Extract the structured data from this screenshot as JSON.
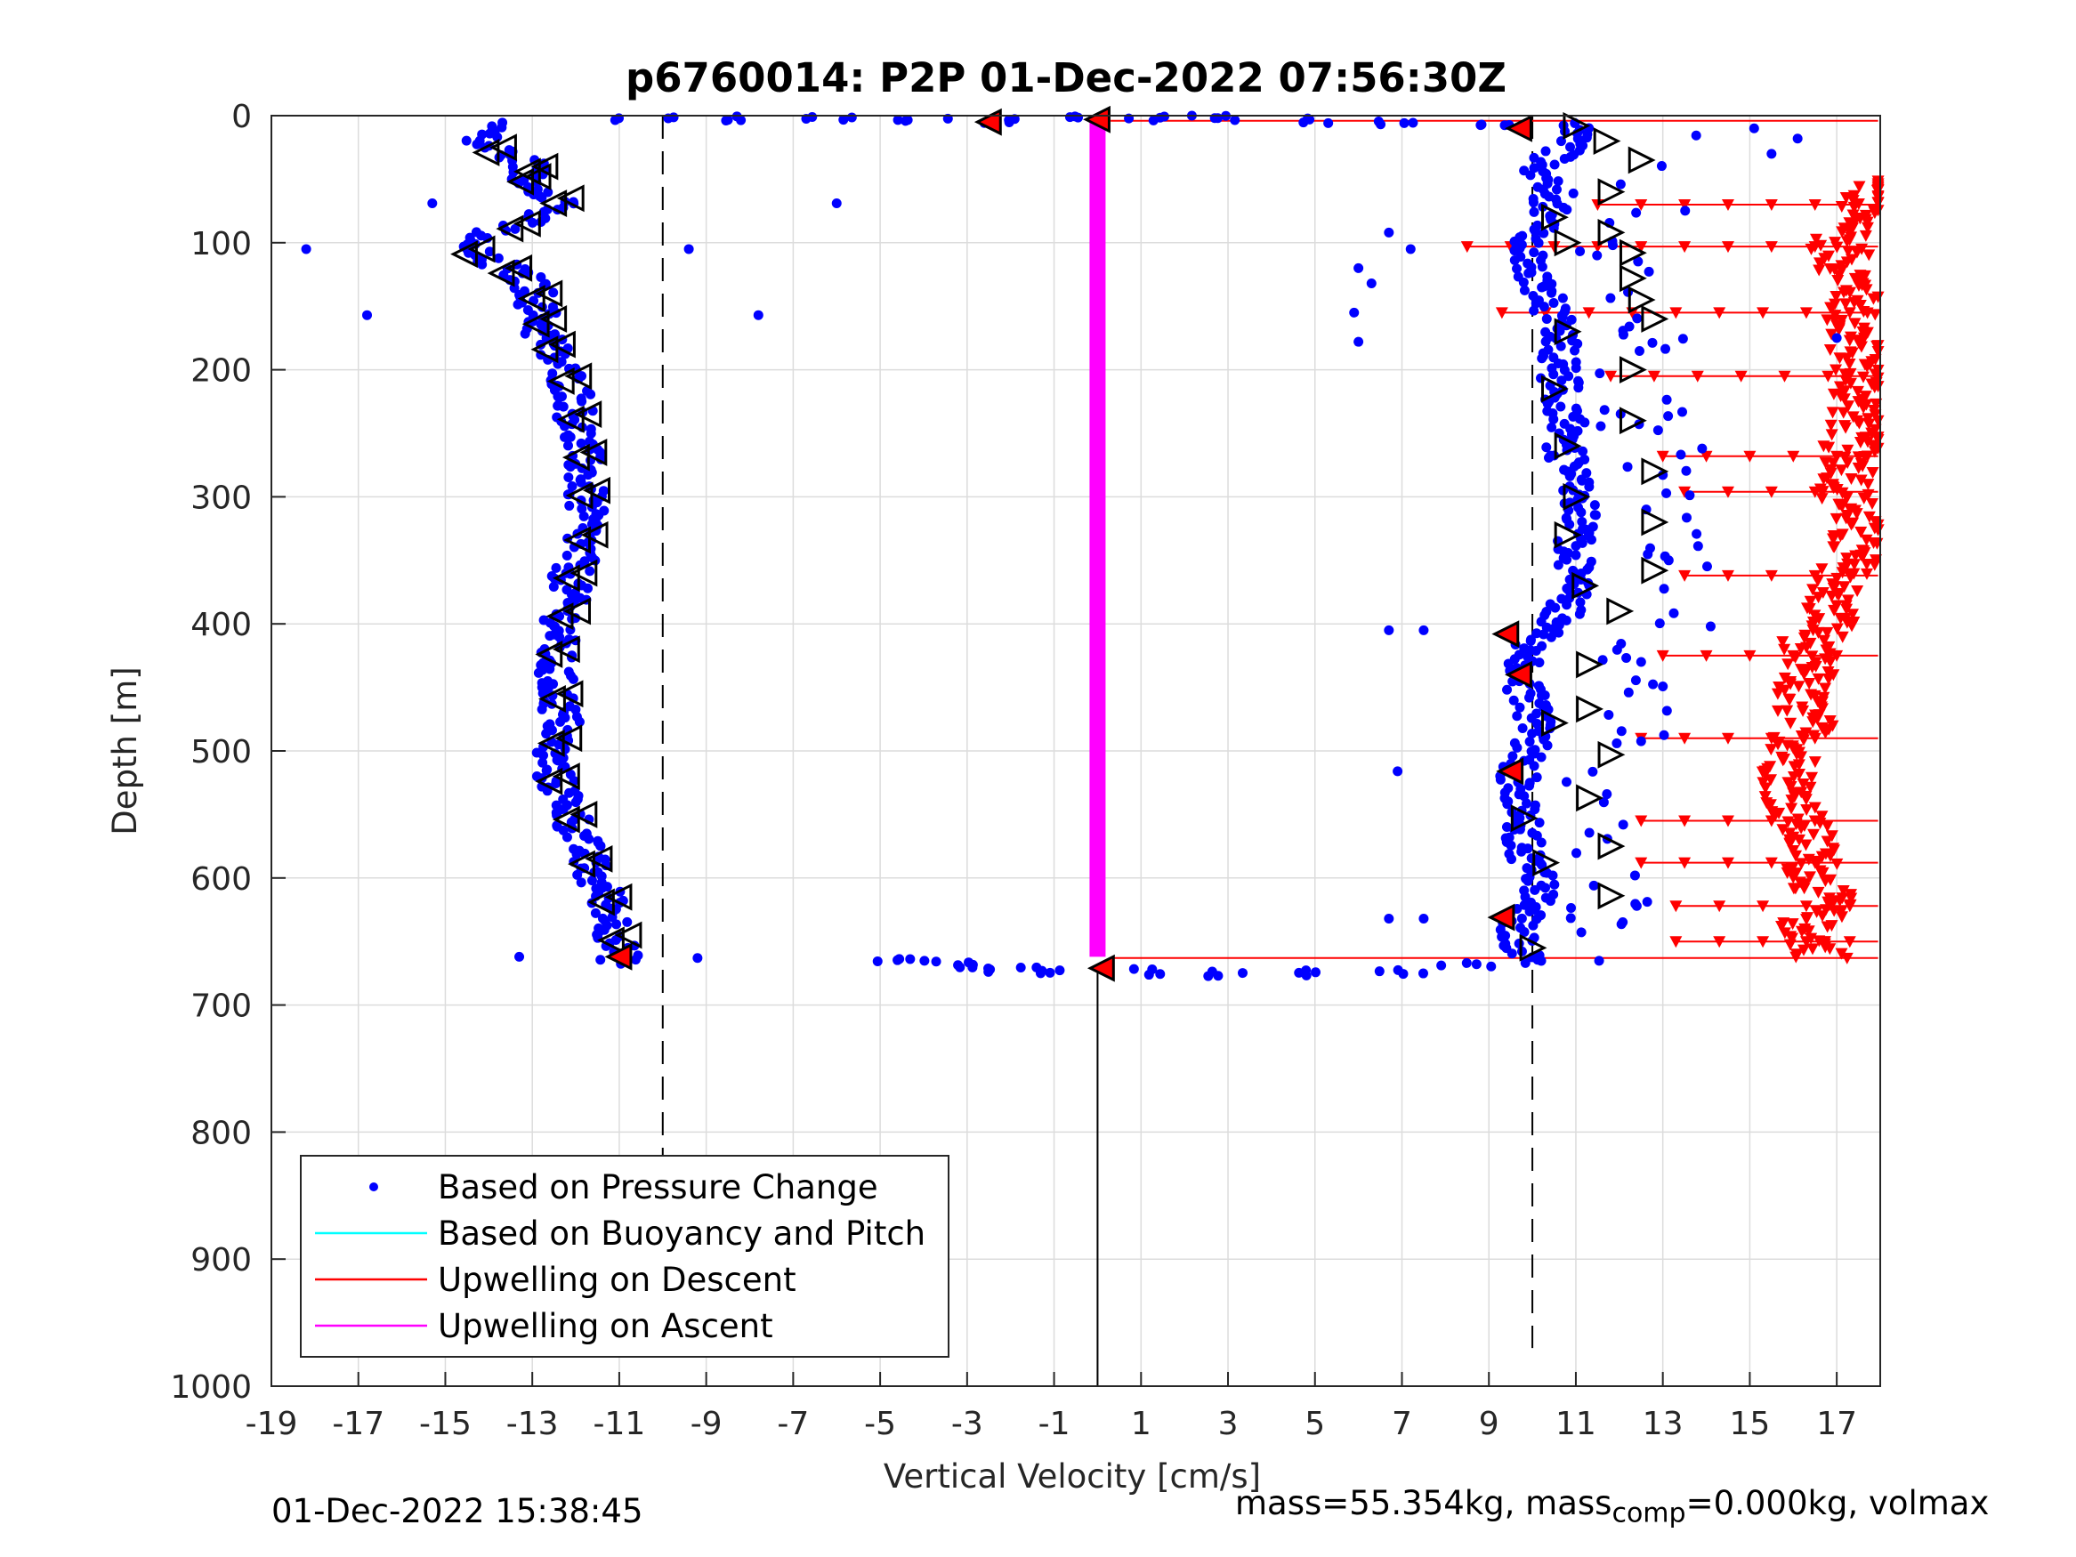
{
  "chart_data": {
    "type": "scatter",
    "title": "p6760014: P2P 01-Dec-2022 07:56:30Z",
    "xlabel": "Vertical Velocity [cm/s]",
    "ylabel": "Depth [m]",
    "xlim": [
      -19,
      18
    ],
    "ylim": [
      0,
      1000
    ],
    "y_reversed": true,
    "grid": true,
    "xticks": [
      "-19",
      "-17",
      "-15",
      "-13",
      "-11",
      "-9",
      "-7",
      "-5",
      "-3",
      "-1",
      "1",
      "3",
      "5",
      "7",
      "9",
      "11",
      "13",
      "15",
      "17"
    ],
    "yticks": [
      "0",
      "100",
      "200",
      "300",
      "400",
      "500",
      "600",
      "700",
      "800",
      "900",
      "1000"
    ],
    "reference_lines": {
      "dashed_x": [
        -10,
        10
      ],
      "solid_x": [
        0
      ]
    },
    "legend": {
      "position": "bottom-left",
      "entries": [
        {
          "label": "Based on Pressure Change",
          "color": "#0000ff",
          "style": "dot"
        },
        {
          "label": "Based on Buoyancy and Pitch",
          "color": "#00ffff",
          "style": "line"
        },
        {
          "label": "Upwelling on Descent",
          "color": "#ff0000",
          "style": "line"
        },
        {
          "label": "Upwelling on Ascent",
          "color": "#ff00ff",
          "style": "line"
        }
      ]
    },
    "series": [
      {
        "name": "Based on Pressure Change",
        "color": "#0000ff",
        "descent_profile": [
          [
            1,
            -13.4
          ],
          [
            10,
            -13.9
          ],
          [
            20,
            -14.3
          ],
          [
            30,
            -13.6
          ],
          [
            40,
            -13.0
          ],
          [
            50,
            -13.2
          ],
          [
            60,
            -12.6
          ],
          [
            70,
            -12.2
          ],
          [
            80,
            -13.0
          ],
          [
            90,
            -13.8
          ],
          [
            100,
            -14.6
          ],
          [
            110,
            -14.3
          ],
          [
            120,
            -13.6
          ],
          [
            130,
            -13.1
          ],
          [
            140,
            -12.9
          ],
          [
            150,
            -12.9
          ],
          [
            160,
            -12.8
          ],
          [
            170,
            -12.8
          ],
          [
            180,
            -12.6
          ],
          [
            190,
            -12.5
          ],
          [
            200,
            -12.3
          ],
          [
            220,
            -12.0
          ],
          [
            240,
            -12.0
          ],
          [
            260,
            -11.9
          ],
          [
            280,
            -11.8
          ],
          [
            300,
            -11.8
          ],
          [
            320,
            -11.8
          ],
          [
            340,
            -11.9
          ],
          [
            360,
            -12.1
          ],
          [
            380,
            -12.2
          ],
          [
            400,
            -12.3
          ],
          [
            420,
            -12.5
          ],
          [
            440,
            -12.5
          ],
          [
            460,
            -12.4
          ],
          [
            480,
            -12.3
          ],
          [
            500,
            -12.6
          ],
          [
            520,
            -12.5
          ],
          [
            540,
            -12.2
          ],
          [
            560,
            -12.0
          ],
          [
            580,
            -11.8
          ],
          [
            600,
            -11.6
          ],
          [
            620,
            -11.2
          ],
          [
            640,
            -11.1
          ],
          [
            660,
            -11.0
          ]
        ],
        "ascent_profile": [
          [
            660,
            9.8
          ],
          [
            640,
            9.5
          ],
          [
            620,
            10.2
          ],
          [
            600,
            10.1
          ],
          [
            580,
            9.9
          ],
          [
            560,
            9.7
          ],
          [
            540,
            9.8
          ],
          [
            520,
            9.7
          ],
          [
            500,
            9.9
          ],
          [
            480,
            10.0
          ],
          [
            460,
            9.9
          ],
          [
            440,
            9.8
          ],
          [
            420,
            9.7
          ],
          [
            400,
            10.5
          ],
          [
            380,
            10.9
          ],
          [
            360,
            11.0
          ],
          [
            340,
            10.9
          ],
          [
            320,
            11.0
          ],
          [
            300,
            11.1
          ],
          [
            280,
            10.8
          ],
          [
            260,
            10.7
          ],
          [
            240,
            10.8
          ],
          [
            220,
            10.7
          ],
          [
            200,
            10.6
          ],
          [
            180,
            10.6
          ],
          [
            160,
            10.5
          ],
          [
            140,
            10.2
          ],
          [
            120,
            10.0
          ],
          [
            100,
            9.9
          ],
          [
            80,
            10.3
          ],
          [
            60,
            10.5
          ],
          [
            40,
            10.2
          ],
          [
            20,
            11.0
          ],
          [
            5,
            10.9
          ]
        ],
        "surface_spread": [
          [
            2,
            -10.5
          ],
          [
            2,
            -8
          ],
          [
            2,
            -6
          ],
          [
            3,
            -4
          ],
          [
            4,
            -2
          ],
          [
            2,
            0
          ],
          [
            2,
            2
          ],
          [
            2,
            3
          ],
          [
            4,
            5
          ],
          [
            5,
            7
          ],
          [
            6,
            9
          ]
        ],
        "bottom_spread": [
          [
            665,
            -4.5
          ],
          [
            667,
            -3.5
          ],
          [
            670,
            -3
          ],
          [
            672,
            -2
          ],
          [
            673,
            -1
          ],
          [
            674,
            1
          ],
          [
            675,
            3
          ],
          [
            675,
            5
          ],
          [
            673,
            7
          ],
          [
            668,
            8.5
          ]
        ],
        "outliers": [
          [
            105,
            -18.2
          ],
          [
            157,
            -16.8
          ],
          [
            69,
            -15.3
          ],
          [
            662,
            -13.3
          ],
          [
            105,
            -9.4
          ],
          [
            157,
            -7.8
          ],
          [
            69,
            -6.0
          ],
          [
            663,
            -9.2
          ],
          [
            92,
            6.7
          ],
          [
            105,
            7.2
          ],
          [
            120,
            6.0
          ],
          [
            132,
            6.3
          ],
          [
            155,
            5.9
          ],
          [
            178,
            6.0
          ],
          [
            405,
            6.7
          ],
          [
            405,
            7.5
          ],
          [
            516,
            6.9
          ],
          [
            632,
            6.7
          ],
          [
            632,
            7.5
          ],
          [
            10,
            15.1
          ],
          [
            18,
            16.1
          ],
          [
            30,
            15.5
          ],
          [
            175,
            17.0
          ],
          [
            402,
            14.1
          ]
        ]
      },
      {
        "name": "Upwelling on Ascent",
        "color": "#ff00ff",
        "x": 0,
        "depth_range": [
          3,
          662
        ]
      },
      {
        "name": "Upwelling on Descent",
        "color": "#ff0000",
        "profile": [
          [
            52,
            18.0
          ],
          [
            70,
            17.6
          ],
          [
            80,
            17.4
          ],
          [
            90,
            17.5
          ],
          [
            100,
            17.0
          ],
          [
            120,
            17.2
          ],
          [
            140,
            17.5
          ],
          [
            160,
            17.3
          ],
          [
            180,
            17.4
          ],
          [
            200,
            17.6
          ],
          [
            220,
            17.5
          ],
          [
            240,
            17.5
          ],
          [
            260,
            17.3
          ],
          [
            280,
            17.4
          ],
          [
            300,
            17.2
          ],
          [
            320,
            17.5
          ],
          [
            340,
            17.3
          ],
          [
            360,
            17.3
          ],
          [
            380,
            16.8
          ],
          [
            400,
            16.9
          ],
          [
            420,
            16.2
          ],
          [
            440,
            16.3
          ],
          [
            460,
            16.1
          ],
          [
            480,
            16.3
          ],
          [
            500,
            16.1
          ],
          [
            520,
            15.9
          ],
          [
            540,
            16.0
          ],
          [
            560,
            16.2
          ],
          [
            580,
            16.4
          ],
          [
            600,
            16.5
          ],
          [
            620,
            16.8
          ],
          [
            640,
            16.2
          ],
          [
            660,
            16.7
          ]
        ],
        "horizontal_lines": [
          [
            4,
            0.3
          ],
          [
            70,
            11.5
          ],
          [
            103,
            8.5
          ],
          [
            155,
            9.3
          ],
          [
            205,
            11.8
          ],
          [
            268,
            13.0
          ],
          [
            296,
            13.5
          ],
          [
            362,
            13.5
          ],
          [
            425,
            13.0
          ],
          [
            490,
            12.5
          ],
          [
            555,
            12.5
          ],
          [
            588,
            12.5
          ],
          [
            622,
            13.3
          ],
          [
            650,
            13.3
          ],
          [
            663,
            0.3
          ]
        ]
      }
    ],
    "markers": {
      "descent_open_triangles_depth": [
        25,
        40,
        48,
        65,
        85,
        105,
        120,
        140,
        160,
        180,
        205,
        235,
        265,
        295,
        330,
        360,
        390,
        420,
        455,
        490,
        520,
        550,
        585,
        615,
        645
      ],
      "ascent_open_triangles": [
        [
          8,
          11.0
        ],
        [
          20,
          11.7
        ],
        [
          35,
          12.5
        ],
        [
          60,
          11.8
        ],
        [
          80,
          10.5
        ],
        [
          92,
          11.8
        ],
        [
          100,
          10.8
        ],
        [
          108,
          12.3
        ],
        [
          128,
          12.3
        ],
        [
          145,
          12.5
        ],
        [
          160,
          12.8
        ],
        [
          170,
          10.8
        ],
        [
          200,
          12.3
        ],
        [
          215,
          10.5
        ],
        [
          240,
          12.3
        ],
        [
          260,
          10.8
        ],
        [
          280,
          12.8
        ],
        [
          300,
          11.0
        ],
        [
          320,
          12.8
        ],
        [
          330,
          10.8
        ],
        [
          358,
          12.8
        ],
        [
          370,
          11.2
        ],
        [
          390,
          12.0
        ],
        [
          432,
          11.3
        ],
        [
          467,
          11.3
        ],
        [
          478,
          10.5
        ],
        [
          503,
          11.8
        ],
        [
          537,
          11.3
        ],
        [
          553,
          9.8
        ],
        [
          575,
          11.8
        ],
        [
          588,
          10.3
        ],
        [
          614,
          11.8
        ],
        [
          655,
          10.0
        ]
      ],
      "red_filled": [
        [
          3,
          0
        ],
        [
          5,
          -2.5
        ],
        [
          10,
          9.7
        ],
        [
          408,
          9.4
        ],
        [
          440,
          9.7
        ],
        [
          516,
          9.5
        ],
        [
          631,
          9.3
        ],
        [
          662,
          -11.0
        ],
        [
          671,
          0.1
        ]
      ]
    }
  },
  "footer": {
    "timestamp": "01-Dec-2022 15:38:45",
    "mass_prefix": "mass=55.354kg, mass",
    "mass_sub": "comp",
    "mass_suffix": "=0.000kg, volmax"
  }
}
